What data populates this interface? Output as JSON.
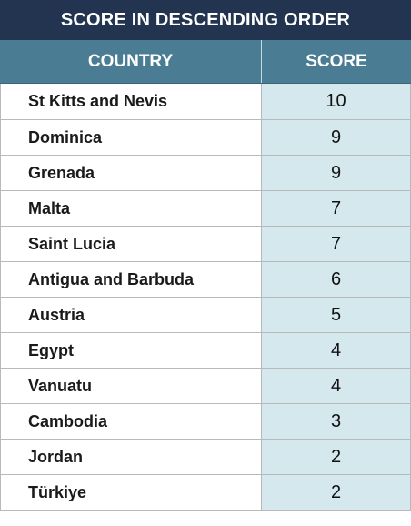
{
  "title": "SCORE IN DESCENDING ORDER",
  "columns": {
    "country": "COUNTRY",
    "score": "SCORE"
  },
  "rows": [
    {
      "country": "St Kitts and Nevis",
      "score": "10"
    },
    {
      "country": "Dominica",
      "score": "9"
    },
    {
      "country": "Grenada",
      "score": "9"
    },
    {
      "country": "Malta",
      "score": "7"
    },
    {
      "country": "Saint Lucia",
      "score": "7"
    },
    {
      "country": "Antigua and Barbuda",
      "score": "6"
    },
    {
      "country": "Austria",
      "score": "5"
    },
    {
      "country": "Egypt",
      "score": "4"
    },
    {
      "country": "Vanuatu",
      "score": "4"
    },
    {
      "country": "Cambodia",
      "score": "3"
    },
    {
      "country": "Jordan",
      "score": "2"
    },
    {
      "country": "Türkiye",
      "score": "2"
    }
  ],
  "colors": {
    "title_bg": "#22344f",
    "header_bg": "#4a7d94",
    "score_cell_bg": "#d5e8ee"
  },
  "chart_data": {
    "type": "table",
    "title": "SCORE IN DESCENDING ORDER",
    "columns": [
      "COUNTRY",
      "SCORE"
    ],
    "categories": [
      "St Kitts and Nevis",
      "Dominica",
      "Grenada",
      "Malta",
      "Saint Lucia",
      "Antigua and Barbuda",
      "Austria",
      "Egypt",
      "Vanuatu",
      "Cambodia",
      "Jordan",
      "Türkiye"
    ],
    "values": [
      10,
      9,
      9,
      7,
      7,
      6,
      5,
      4,
      4,
      3,
      2,
      2
    ]
  }
}
